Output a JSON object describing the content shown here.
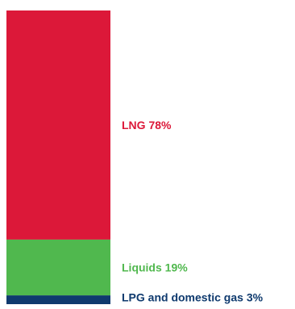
{
  "chart_data": {
    "type": "bar",
    "stacked": true,
    "orientation": "vertical",
    "unit": "%",
    "series": [
      {
        "name": "LNG",
        "value": 78,
        "label": "LNG 78%",
        "color": "#DC1839"
      },
      {
        "name": "Liquids",
        "value": 19,
        "label": "Liquids 19%",
        "color": "#50B84E"
      },
      {
        "name": "LPG and domestic gas",
        "value": 3,
        "label": "LPG and domestic gas 3%",
        "color": "#0F3A6E"
      }
    ],
    "total": 100
  }
}
